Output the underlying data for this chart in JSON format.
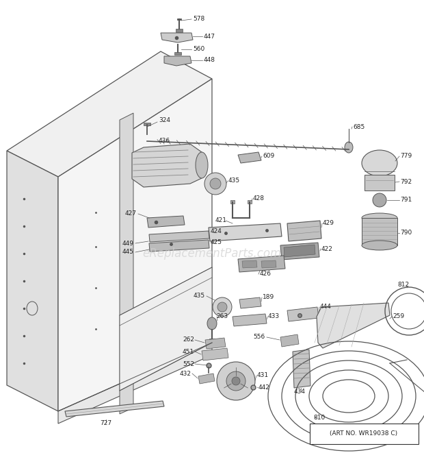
{
  "art_no": "(ART NO. WR19038 C)",
  "watermark": "eReplacementParts.com",
  "bg_color": "#ffffff",
  "line_color": "#555555"
}
